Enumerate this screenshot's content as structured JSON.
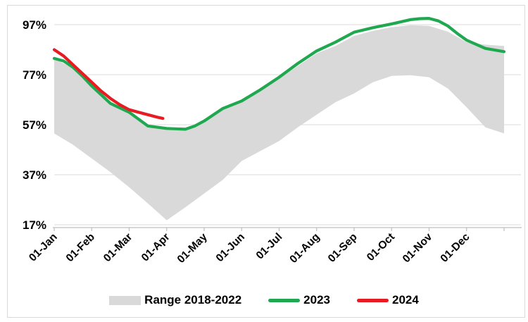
{
  "chart_data": {
    "type": "area",
    "title": "",
    "x_axis": {
      "tick_labels": [
        "01-Jan",
        "01-Feb",
        "01-Mar",
        "01-Apr",
        "01-May",
        "01-Jun",
        "01-Jul",
        "01-Aug",
        "01-Sep",
        "01-Oct",
        "01-Nov",
        "01-Dec"
      ],
      "label_rotation_deg": -45
    },
    "y_axis": {
      "tick_labels": [
        "17%",
        "37%",
        "57%",
        "77%",
        "97%"
      ],
      "tick_values": [
        17,
        37,
        57,
        77,
        97
      ],
      "range": [
        17,
        100
      ],
      "unit": "%",
      "grid": true
    },
    "series": [
      {
        "name": "Range 2018-2022",
        "type": "band",
        "color": "#D9D9D9",
        "x": [
          0,
          0.5,
          1,
          1.5,
          2,
          2.5,
          3,
          3.5,
          4,
          4.5,
          5,
          5.5,
          6,
          6.5,
          7,
          7.5,
          8,
          8.5,
          9,
          9.5,
          10,
          10.5,
          11,
          11.5,
          12
        ],
        "upper": [
          83.5,
          79.5,
          72,
          65,
          61.5,
          56,
          55,
          55,
          58,
          63,
          66,
          70.5,
          75.5,
          80.5,
          85.5,
          88.5,
          92.5,
          94.5,
          96,
          96.8,
          96.5,
          94.2,
          90,
          89,
          88.5
        ],
        "lower": [
          53.5,
          49,
          43.5,
          38,
          32,
          25.5,
          18.8,
          24,
          29.5,
          35,
          42.5,
          46.5,
          50.5,
          56,
          61,
          66,
          69.5,
          74,
          76.5,
          76.8,
          76,
          71.5,
          64,
          56,
          53.5
        ]
      },
      {
        "name": "2023",
        "type": "line",
        "color": "#1FA84F",
        "x": [
          0,
          0.25,
          0.5,
          0.75,
          1,
          1.5,
          2,
          2.5,
          3,
          3.5,
          3.75,
          4,
          4.5,
          5,
          5.5,
          6,
          6.5,
          7,
          7.5,
          8,
          8.5,
          9,
          9.5,
          9.75,
          10,
          10.25,
          10.5,
          10.75,
          11,
          11.5,
          12
        ],
        "values": [
          83.5,
          82.5,
          80,
          76.5,
          72.5,
          65.5,
          62,
          56.5,
          55.5,
          55.2,
          56.5,
          58.5,
          63.5,
          66.5,
          71,
          76,
          81.5,
          86.5,
          90,
          94,
          95.8,
          97.3,
          99,
          99.4,
          99.5,
          98.5,
          96.5,
          93.5,
          90.8,
          87.5,
          86.2
        ]
      },
      {
        "name": "2024",
        "type": "line",
        "color": "#E81B23",
        "x": [
          0,
          0.25,
          0.5,
          0.75,
          1,
          1.25,
          1.5,
          1.75,
          2,
          2.25,
          2.5,
          2.75,
          2.9
        ],
        "values": [
          87,
          84.5,
          81,
          77.5,
          74,
          70.5,
          67.5,
          65,
          63,
          62,
          61,
          60,
          59.5
        ]
      }
    ],
    "legend": {
      "position": "bottom",
      "entries": [
        "Range 2018-2022",
        "2023",
        "2024"
      ]
    }
  },
  "legend": {
    "range_label": "Range 2018-2022",
    "y2023_label": "2023",
    "y2024_label": "2024"
  },
  "colors": {
    "band": "#D9D9D9",
    "line_2023": "#1FA84F",
    "line_2024": "#E81B23",
    "gridline": "#DBDBDB",
    "axis": "#BFBFBF",
    "frame": "#D9D9D9",
    "text": "#000000"
  }
}
